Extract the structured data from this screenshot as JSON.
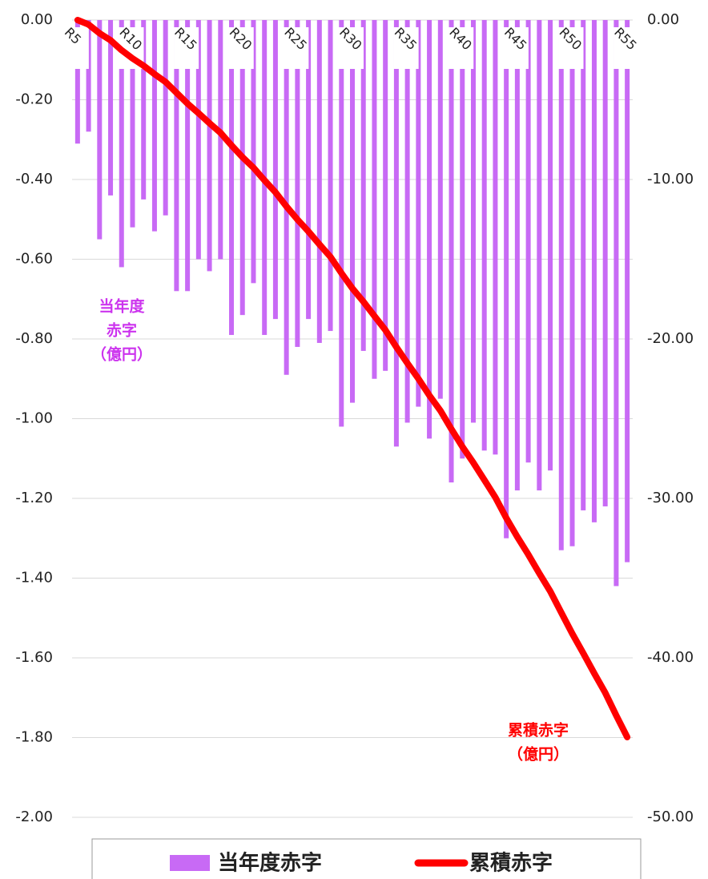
{
  "chart_data": {
    "type": "bar_line",
    "categories": [
      "R5",
      null,
      null,
      null,
      null,
      "R10",
      null,
      null,
      null,
      null,
      "R15",
      null,
      null,
      null,
      null,
      "R20",
      null,
      null,
      null,
      null,
      "R25",
      null,
      null,
      null,
      null,
      "R30",
      null,
      null,
      null,
      null,
      "R35",
      null,
      null,
      null,
      null,
      "R40",
      null,
      null,
      null,
      null,
      "R45",
      null,
      null,
      null,
      null,
      "R50",
      null,
      null,
      null,
      null,
      "R55"
    ],
    "series": [
      {
        "name": "当年度赤字",
        "type": "bar",
        "color": "#c86af5",
        "values": [
          -0.31,
          -0.28,
          -0.55,
          -0.44,
          -0.62,
          -0.52,
          -0.45,
          -0.53,
          -0.49,
          -0.68,
          -0.68,
          -0.6,
          -0.63,
          -0.6,
          -0.79,
          -0.74,
          -0.66,
          -0.79,
          -0.75,
          -0.89,
          -0.82,
          -0.75,
          -0.81,
          -0.78,
          -1.02,
          -0.96,
          -0.83,
          -0.9,
          -0.88,
          -1.07,
          -1.01,
          -0.97,
          -1.05,
          -0.95,
          -1.16,
          -1.1,
          -1.01,
          -1.08,
          -1.09,
          -1.3,
          -1.18,
          -1.11,
          -1.18,
          -1.13,
          -1.33,
          -1.32,
          -1.23,
          -1.26,
          -1.22,
          -1.42,
          -1.36
        ]
      },
      {
        "name": "累積赤字",
        "type": "line",
        "axis": "y2",
        "color": "#ff0000",
        "values": [
          0,
          -0.28,
          -0.83,
          -1.27,
          -1.89,
          -2.41,
          -2.86,
          -3.39,
          -3.88,
          -4.56,
          -5.24,
          -5.84,
          -6.47,
          -7.07,
          -7.86,
          -8.6,
          -9.26,
          -10.05,
          -10.8,
          -11.69,
          -12.51,
          -13.26,
          -14.07,
          -14.85,
          -15.87,
          -16.83,
          -17.66,
          -18.56,
          -19.44,
          -20.51,
          -21.52,
          -22.49,
          -23.54,
          -24.49,
          -25.65,
          -26.75,
          -27.76,
          -28.84,
          -29.93,
          -31.23,
          -32.41,
          -33.52,
          -34.7,
          -35.83,
          -37.16,
          -38.48,
          -39.71,
          -40.97,
          -42.19,
          -43.61,
          -44.97
        ]
      }
    ],
    "ylim": [
      -2,
      0
    ],
    "yticks": [
      {
        "value": 0,
        "label": "0.00"
      },
      {
        "value": -0.2,
        "label": "-0.20"
      },
      {
        "value": -0.4,
        "label": "-0.40"
      },
      {
        "value": -0.6,
        "label": "-0.60"
      },
      {
        "value": -0.8,
        "label": "-0.80"
      },
      {
        "value": -1,
        "label": "-1.00"
      },
      {
        "value": -1.2,
        "label": "-1.20"
      },
      {
        "value": -1.4,
        "label": "-1.40"
      },
      {
        "value": -1.6,
        "label": "-1.60"
      },
      {
        "value": -1.8,
        "label": "-1.80"
      },
      {
        "value": -2,
        "label": "-2.00"
      }
    ],
    "y2lim": [
      -50,
      0
    ],
    "y2ticks": [
      {
        "value": 0,
        "label": "0.00"
      },
      {
        "value": -10,
        "label": "-10.00"
      },
      {
        "value": -20,
        "label": "-20.00"
      },
      {
        "value": -30,
        "label": "-30.00"
      },
      {
        "value": -40,
        "label": "-40.00"
      },
      {
        "value": -50,
        "label": "-50.00"
      }
    ],
    "grid": true,
    "legend": "bottom",
    "annotations": [
      {
        "lines": [
          "当年度",
          "赤字",
          "（億円）"
        ],
        "color": "#cc33ee"
      },
      {
        "lines": [
          "累積赤字",
          "（億円）"
        ],
        "color": "#ff0000"
      }
    ]
  }
}
